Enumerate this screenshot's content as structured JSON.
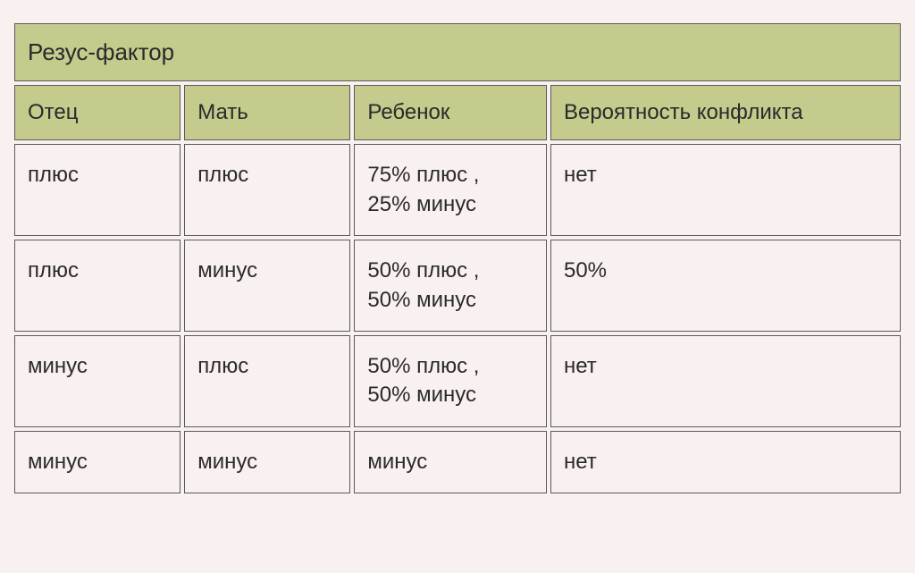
{
  "table": {
    "type": "table",
    "background_color": "#f9f0f0",
    "header_bg": "#c5ca8d",
    "cell_bg": "#f9f0f0",
    "border_color": "#5a5a5a",
    "text_color": "#2a2a2a",
    "title_fontsize": 26,
    "header_fontsize": 24,
    "cell_fontsize": 24,
    "border_spacing": 4,
    "title": "Резус-фактор",
    "columns": [
      {
        "label": "Отец",
        "width_pct": 19
      },
      {
        "label": "Мать",
        "width_pct": 19
      },
      {
        "label": "Ребенок",
        "width_pct": 22
      },
      {
        "label": "Вероятность конфликта",
        "width_pct": 40
      }
    ],
    "rows": [
      {
        "father": "плюс",
        "mother": "плюс",
        "child": "75% плюс ,\n25% минус",
        "conflict": "нет"
      },
      {
        "father": "плюс",
        "mother": "минус",
        "child": "50% плюс ,\n50% минус",
        "conflict": "50%"
      },
      {
        "father": "минус",
        "mother": "плюс",
        "child": "50% плюс ,\n50% минус",
        "conflict": "нет"
      },
      {
        "father": "минус",
        "mother": "минус",
        "child": "минус",
        "conflict": "нет"
      }
    ]
  }
}
